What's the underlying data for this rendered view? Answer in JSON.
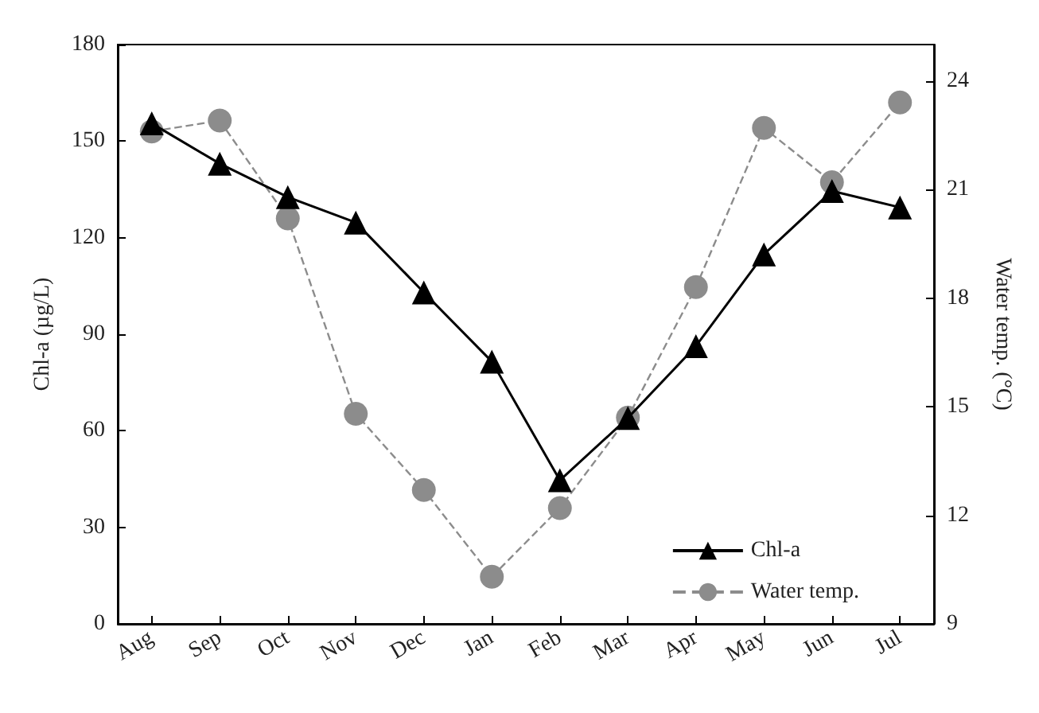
{
  "chart_data": {
    "type": "line",
    "categories": [
      "Aug",
      "Sep",
      "Oct",
      "Nov",
      "Dec",
      "Jan",
      "Feb",
      "Mar",
      "Apr",
      "May",
      "Jun",
      "Jul"
    ],
    "ylabel": "Chl-a (µg/L)",
    "y2label": "Water temp. (°C)",
    "ylim": [
      0,
      180
    ],
    "yticks": [
      0,
      30,
      60,
      90,
      120,
      150,
      180
    ],
    "y2lim": [
      9,
      25
    ],
    "y2ticks": [
      9,
      12,
      15,
      18,
      21,
      24
    ],
    "grid": false,
    "legend": "bottom right",
    "series": [
      {
        "name": "Chl-a",
        "color": "#000000",
        "marker": "triangle",
        "line_style": "solid",
        "values": [
          155.5,
          143,
          132.6,
          124.7,
          103,
          81.5,
          44.6,
          64,
          86.3,
          114.8,
          134.5,
          129.4
        ]
      },
      {
        "name": "Water temp.",
        "color": "#8c8c8c",
        "marker": "circle",
        "line_style": "dashed",
        "axis": "y2",
        "values": [
          22.6,
          22.9,
          20.2,
          14.8,
          12.7,
          10.3,
          12.2,
          14.7,
          18.3,
          22.7,
          21.2,
          23.4
        ]
      }
    ]
  }
}
